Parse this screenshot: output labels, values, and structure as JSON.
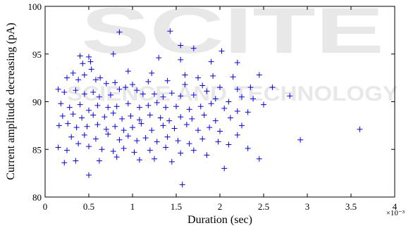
{
  "watermark": {
    "main": "SCITE",
    "sub": "SCIENCE AND TECHNOLOGY"
  },
  "chart_data": {
    "type": "scatter",
    "marker": "+",
    "color": "#0000ff",
    "xlabel": "Duration (sec)",
    "ylabel": "Current amplitude decreasing (pA)",
    "x_multiplier": "×10⁻³",
    "xlim": [
      0,
      4
    ],
    "ylim": [
      80,
      100
    ],
    "xticks": [
      "0",
      "0.5",
      "1",
      "1.5",
      "2",
      "2.5",
      "3",
      "3.5",
      "4"
    ],
    "yticks": [
      "80",
      "85",
      "90",
      "95",
      "100"
    ],
    "x_tick_values": [
      0,
      0.5,
      1,
      1.5,
      2,
      2.5,
      3,
      3.5,
      4
    ],
    "y_tick_values": [
      80,
      85,
      90,
      95,
      100
    ],
    "grid": false,
    "points": [
      [
        0.85,
        97.3
      ],
      [
        1.43,
        97.4
      ],
      [
        1.7,
        95.6
      ],
      [
        1.55,
        95.9
      ],
      [
        2.02,
        95.3
      ],
      [
        0.4,
        94.8
      ],
      [
        0.5,
        94.7
      ],
      [
        0.52,
        94.2
      ],
      [
        0.43,
        94.0
      ],
      [
        0.53,
        93.4
      ],
      [
        0.78,
        95.0
      ],
      [
        1.3,
        94.6
      ],
      [
        1.55,
        94.4
      ],
      [
        1.9,
        94.2
      ],
      [
        2.2,
        94.1
      ],
      [
        0.32,
        93.0
      ],
      [
        0.45,
        92.8
      ],
      [
        0.63,
        92.5
      ],
      [
        0.95,
        93.2
      ],
      [
        1.22,
        93.0
      ],
      [
        1.6,
        92.8
      ],
      [
        1.75,
        92.5
      ],
      [
        1.92,
        92.7
      ],
      [
        2.15,
        92.6
      ],
      [
        2.45,
        92.8
      ],
      [
        0.25,
        92.5
      ],
      [
        0.38,
        92.3
      ],
      [
        0.58,
        92.3
      ],
      [
        0.7,
        91.9
      ],
      [
        0.8,
        92.0
      ],
      [
        1.0,
        91.8
      ],
      [
        1.18,
        92.1
      ],
      [
        1.4,
        92.2
      ],
      [
        1.6,
        91.8
      ],
      [
        1.8,
        91.7
      ],
      [
        2.0,
        91.5
      ],
      [
        2.2,
        91.3
      ],
      [
        2.35,
        91.5
      ],
      [
        2.6,
        91.5
      ],
      [
        2.8,
        90.6
      ],
      [
        0.15,
        91.3
      ],
      [
        0.22,
        91.0
      ],
      [
        0.35,
        91.2
      ],
      [
        0.45,
        90.8
      ],
      [
        0.55,
        91.0
      ],
      [
        0.62,
        90.5
      ],
      [
        0.75,
        90.7
      ],
      [
        0.85,
        91.3
      ],
      [
        0.92,
        91.5
      ],
      [
        1.05,
        91.2
      ],
      [
        1.12,
        90.8
      ],
      [
        1.25,
        90.8
      ],
      [
        1.35,
        90.5
      ],
      [
        1.45,
        90.9
      ],
      [
        1.55,
        90.6
      ],
      [
        1.7,
        90.7
      ],
      [
        1.85,
        91.1
      ],
      [
        1.95,
        90.3
      ],
      [
        2.1,
        90.0
      ],
      [
        2.25,
        90.5
      ],
      [
        2.38,
        90.3
      ],
      [
        2.5,
        89.7
      ],
      [
        0.18,
        89.8
      ],
      [
        0.28,
        89.4
      ],
      [
        0.4,
        89.7
      ],
      [
        0.5,
        89.1
      ],
      [
        0.6,
        89.6
      ],
      [
        0.72,
        89.4
      ],
      [
        0.82,
        89.5
      ],
      [
        0.95,
        89.8
      ],
      [
        1.08,
        89.4
      ],
      [
        1.18,
        89.6
      ],
      [
        1.28,
        89.9
      ],
      [
        1.38,
        89.4
      ],
      [
        1.5,
        89.5
      ],
      [
        1.65,
        89.2
      ],
      [
        1.78,
        89.5
      ],
      [
        1.9,
        89.8
      ],
      [
        2.05,
        89.3
      ],
      [
        2.2,
        89.0
      ],
      [
        2.32,
        88.9
      ],
      [
        0.2,
        88.5
      ],
      [
        0.32,
        88.7
      ],
      [
        0.42,
        88.3
      ],
      [
        0.55,
        88.6
      ],
      [
        0.68,
        88.4
      ],
      [
        0.78,
        88.8
      ],
      [
        0.88,
        88.2
      ],
      [
        0.98,
        88.5
      ],
      [
        1.08,
        88.1
      ],
      [
        1.2,
        88.6
      ],
      [
        1.32,
        88.3
      ],
      [
        1.42,
        88.0
      ],
      [
        1.55,
        88.4
      ],
      [
        1.68,
        88.2
      ],
      [
        1.82,
        88.6
      ],
      [
        1.95,
        88.0
      ],
      [
        2.12,
        88.3
      ],
      [
        2.25,
        87.5
      ],
      [
        0.16,
        87.5
      ],
      [
        0.26,
        87.7
      ],
      [
        0.36,
        87.3
      ],
      [
        0.48,
        87.4
      ],
      [
        0.6,
        87.6
      ],
      [
        0.7,
        87.1
      ],
      [
        0.8,
        87.4
      ],
      [
        0.9,
        87.0
      ],
      [
        1.0,
        87.3
      ],
      [
        1.1,
        87.7
      ],
      [
        1.22,
        87.0
      ],
      [
        1.35,
        87.5
      ],
      [
        1.48,
        87.2
      ],
      [
        1.62,
        87.6
      ],
      [
        1.75,
        87.0
      ],
      [
        1.88,
        87.3
      ],
      [
        2.0,
        86.9
      ],
      [
        2.2,
        86.5
      ],
      [
        0.3,
        86.3
      ],
      [
        0.45,
        86.5
      ],
      [
        0.58,
        86.1
      ],
      [
        0.72,
        86.6
      ],
      [
        0.85,
        86.0
      ],
      [
        0.95,
        86.4
      ],
      [
        1.05,
        85.9
      ],
      [
        1.15,
        86.2
      ],
      [
        1.28,
        85.8
      ],
      [
        1.4,
        86.3
      ],
      [
        1.52,
        85.9
      ],
      [
        1.65,
        85.6
      ],
      [
        1.8,
        86.1
      ],
      [
        1.98,
        85.8
      ],
      [
        2.1,
        85.5
      ],
      [
        0.15,
        85.2
      ],
      [
        0.25,
        84.9
      ],
      [
        0.38,
        85.6
      ],
      [
        0.5,
        85.3
      ],
      [
        0.65,
        85.0
      ],
      [
        0.78,
        84.8
      ],
      [
        0.9,
        85.1
      ],
      [
        1.02,
        84.7
      ],
      [
        1.2,
        84.9
      ],
      [
        1.38,
        85.2
      ],
      [
        1.55,
        84.6
      ],
      [
        1.7,
        84.9
      ],
      [
        1.85,
        84.4
      ],
      [
        2.32,
        85.1
      ],
      [
        0.22,
        83.6
      ],
      [
        0.35,
        83.8
      ],
      [
        0.62,
        83.8
      ],
      [
        0.82,
        84.2
      ],
      [
        1.08,
        83.9
      ],
      [
        1.25,
        84.0
      ],
      [
        1.45,
        83.7
      ],
      [
        2.45,
        84.0
      ],
      [
        2.92,
        86.0
      ],
      [
        3.6,
        87.1
      ],
      [
        0.5,
        82.3
      ],
      [
        2.05,
        83.0
      ],
      [
        1.57,
        81.3
      ]
    ]
  }
}
